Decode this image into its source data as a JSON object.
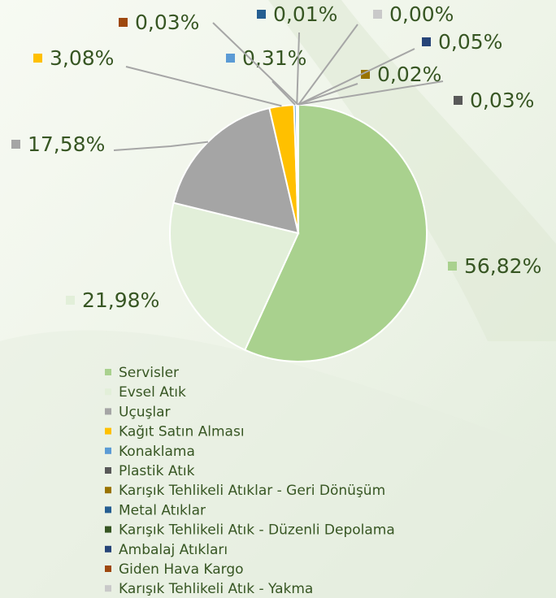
{
  "chart_data": {
    "type": "pie",
    "categories": [
      "Servisler",
      "Evsel Atık",
      "Uçuşlar",
      "Kağıt Satın Alması",
      "Konaklama",
      "Plastik Atık",
      "Karışık Tehlikeli Atıklar - Geri Dönüşüm",
      "Metal Atıklar",
      "Karışık Tehlikeli Atık - Düzenli Depolama",
      "Ambalaj Atıkları",
      "Giden Hava Kargo",
      "Karışık Tehlikeli Atık - Yakma"
    ],
    "values": [
      56.82,
      21.98,
      17.58,
      3.08,
      0.31,
      0.03,
      0.02,
      0.01,
      0.09,
      0.05,
      0.03,
      0.0
    ],
    "value_labels": [
      "56,82%",
      "21,98%",
      "17,58%",
      "3,08%",
      "0,31%",
      "0,03%",
      "0,02%",
      "0,01%",
      null,
      "0,05%",
      "0,03%",
      "0,00%"
    ],
    "colors": [
      "#a9d18e",
      "#e2efd9",
      "#a5a5a5",
      "#ffc000",
      "#5b9bd5",
      "#595959",
      "#997300",
      "#255e91",
      "#375623",
      "#264478",
      "#9e480e",
      "#c9c9c9"
    ],
    "legend": "bottom"
  }
}
